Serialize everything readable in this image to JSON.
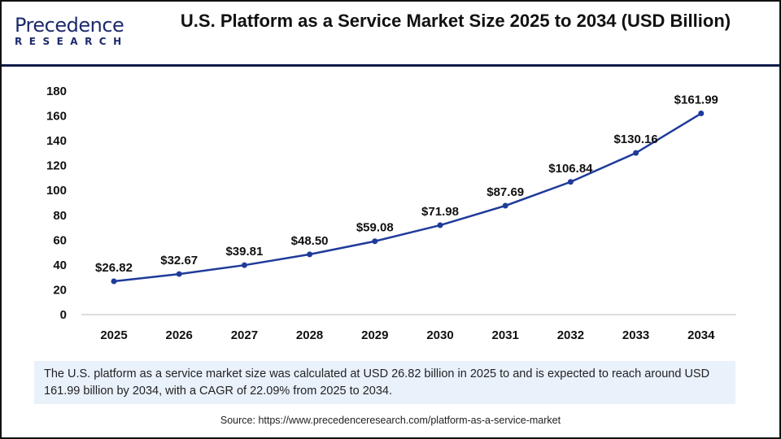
{
  "logo": {
    "text_top": "Precedence",
    "text_bottom": "RESEARCH"
  },
  "title": "U.S. Platform as a Service Market Size 2025 to 2034 (USD Billion)",
  "chart_data": {
    "type": "line",
    "title": "U.S. Platform as a Service Market Size 2025 to 2034 (USD Billion)",
    "categories": [
      "2025",
      "2026",
      "2027",
      "2028",
      "2029",
      "2030",
      "2031",
      "2032",
      "2033",
      "2034"
    ],
    "series": [
      {
        "values": [
          26.82,
          32.67,
          39.81,
          48.5,
          59.08,
          71.98,
          87.69,
          106.84,
          130.16,
          161.99
        ],
        "color": "#1f3b9a"
      }
    ],
    "data_labels": [
      "$26.82",
      "$32.67",
      "$39.81",
      "$48.50",
      "$59.08",
      "$71.98",
      "$87.69",
      "$106.84",
      "$130.16",
      "$161.99"
    ],
    "ylim": [
      0,
      180
    ],
    "yticks": [
      0,
      20,
      40,
      60,
      80,
      100,
      120,
      140,
      160,
      180
    ],
    "grid": false,
    "xlabel": "",
    "ylabel": ""
  },
  "description": "The U.S. platform as a service market size was calculated at USD 26.82 billion in 2025 to and is expected to reach around USD 161.99 billion by 2034, with a CAGR of 22.09% from 2025 to 2034.",
  "source": "Source: https://www.precedenceresearch.com/platform-as-a-service-market"
}
